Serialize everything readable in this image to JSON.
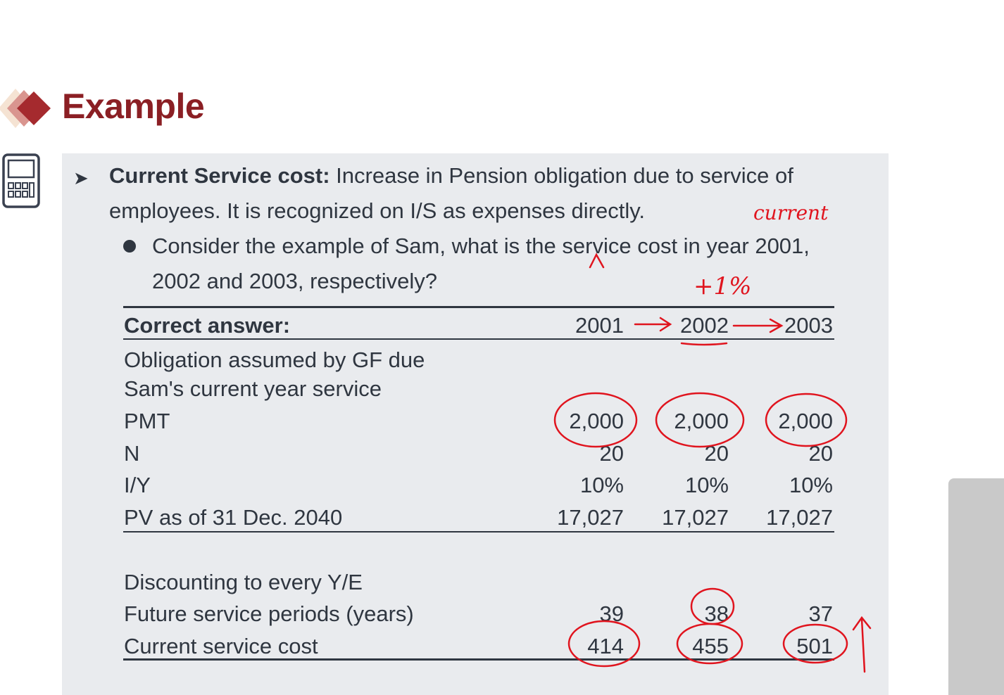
{
  "slide": {
    "title": "Example",
    "bullet1_bold": "Current Service cost:",
    "bullet1_rest": " Increase in Pension obligation due to service of",
    "bullet1_line2": "employees.  It is recognized on I/S as expenses directly.",
    "sub_line1": "Consider the example of Sam, what is the service cost in year 2001,",
    "sub_line2": "2002 and 2003, respectively?"
  },
  "table": {
    "header": {
      "label": "Correct answer:",
      "years": [
        "2001",
        "2002",
        "2003"
      ]
    },
    "section1_line1": "Obligation assumed by GF due",
    "section1_line2": "Sam's current year service",
    "rows1": [
      {
        "label": "PMT",
        "values": [
          "2,000",
          "2,000",
          "2,000"
        ]
      },
      {
        "label": "N",
        "values": [
          "20",
          "20",
          "20"
        ]
      },
      {
        "label": "I/Y",
        "values": [
          "10%",
          "10%",
          "10%"
        ]
      },
      {
        "label": "PV as of 31 Dec. 2040",
        "values": [
          "17,027",
          "17,027",
          "17,027"
        ]
      }
    ],
    "section2_title": "Discounting to every Y/E",
    "rows2": [
      {
        "label": "Future service periods (years)",
        "values": [
          "39",
          "38",
          "37"
        ]
      },
      {
        "label": "Current service cost",
        "values": [
          "414",
          "455",
          "501"
        ]
      }
    ]
  },
  "annotations": {
    "insert_word": "current",
    "growth_note": "+1%",
    "color": "#e0141e"
  },
  "colors": {
    "title": "#8b1f24",
    "panel": "#e9ebee",
    "text": "#2f3640"
  }
}
